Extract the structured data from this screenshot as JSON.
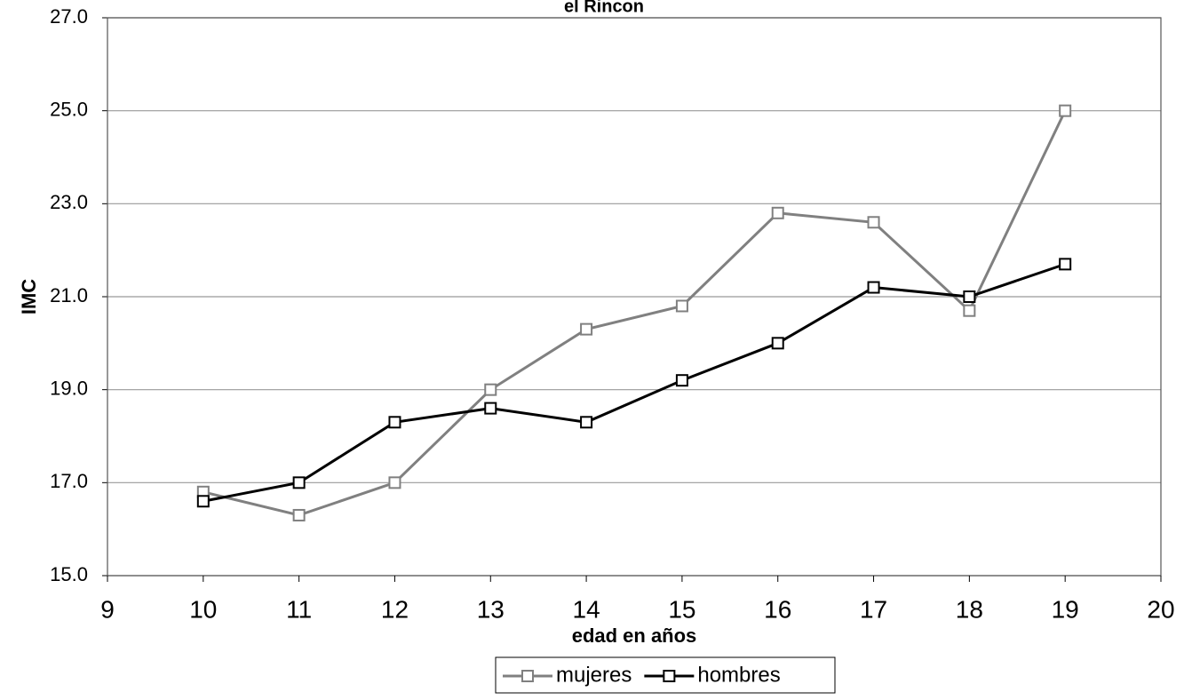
{
  "chart_data": {
    "type": "line",
    "title": "el Rincon",
    "x_label": "edad en años",
    "y_label": "IMC",
    "x": [
      10,
      11,
      12,
      13,
      14,
      15,
      16,
      17,
      18,
      19
    ],
    "series": [
      {
        "name": "mujeres",
        "color": "#808080",
        "values": [
          16.8,
          16.3,
          17.0,
          19.0,
          20.3,
          20.8,
          22.8,
          22.6,
          20.7,
          25.0
        ]
      },
      {
        "name": "hombres",
        "color": "#000000",
        "values": [
          16.6,
          17.0,
          18.3,
          18.6,
          18.3,
          19.2,
          20.0,
          21.2,
          21.0,
          21.7
        ]
      }
    ],
    "xlim": [
      9,
      20
    ],
    "xticks": [
      9,
      10,
      11,
      12,
      13,
      14,
      15,
      16,
      17,
      18,
      19,
      20
    ],
    "ylim": [
      15,
      27
    ],
    "yticks": [
      {
        "value": 15,
        "label": "15.0"
      },
      {
        "value": 17,
        "label": "17.0"
      },
      {
        "value": 19,
        "label": "19.0"
      },
      {
        "value": 21,
        "label": "21.0"
      },
      {
        "value": 23,
        "label": "23.0"
      },
      {
        "value": 25,
        "label": "25.0"
      },
      {
        "value": 27,
        "label": "27.0"
      }
    ],
    "grid": true,
    "legend": "bottom"
  }
}
